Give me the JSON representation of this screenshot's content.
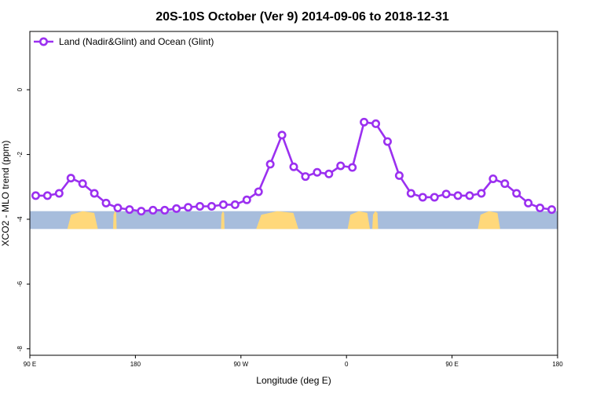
{
  "chart_data": {
    "type": "line",
    "title": "20S-10S October (Ver 9)   2014-09-06 to 2018-12-31",
    "xlabel": "Longitude (deg E)",
    "ylabel": "XCO2 - MLO trend (ppm)",
    "xlim": [
      90,
      540
    ],
    "ylim": [
      -8.2,
      1.8
    ],
    "x_ticks": [
      {
        "value": 90,
        "label": "90 E"
      },
      {
        "value": 180,
        "label": "180"
      },
      {
        "value": 270,
        "label": "90 W"
      },
      {
        "value": 360,
        "label": "0"
      },
      {
        "value": 450,
        "label": "90 E"
      },
      {
        "value": 540,
        "label": "180"
      }
    ],
    "y_ticks": [
      {
        "value": 0,
        "label": "0"
      },
      {
        "value": -2,
        "label": "-2"
      },
      {
        "value": -4,
        "label": "-4"
      },
      {
        "value": -6,
        "label": "-6"
      },
      {
        "value": -8,
        "label": "-8"
      }
    ],
    "legend": {
      "position": "top-left"
    },
    "series": [
      {
        "name": "Land (Nadir&Glint) and Ocean (Glint)",
        "color": "#9b30f0",
        "x": [
          95,
          105,
          115,
          125,
          135,
          145,
          155,
          165,
          175,
          185,
          195,
          205,
          215,
          225,
          235,
          245,
          255,
          265,
          275,
          285,
          295,
          305,
          315,
          325,
          335,
          345,
          355,
          365,
          375,
          385,
          395,
          405,
          415,
          425,
          435,
          445,
          455,
          465,
          475,
          485,
          495,
          505,
          515,
          525,
          535
        ],
        "y": [
          -3.27,
          -3.27,
          -3.2,
          -2.73,
          -2.9,
          -3.2,
          -3.5,
          -3.65,
          -3.7,
          -3.75,
          -3.72,
          -3.72,
          -3.67,
          -3.63,
          -3.6,
          -3.6,
          -3.55,
          -3.55,
          -3.4,
          -3.15,
          -2.3,
          -1.4,
          -2.38,
          -2.68,
          -2.55,
          -2.6,
          -2.35,
          -2.4,
          -1.0,
          -1.05,
          -1.6,
          -2.65,
          -3.2,
          -3.32,
          -3.32,
          -3.22,
          -3.27,
          -3.27,
          -3.2,
          -2.75,
          -2.9,
          -3.2,
          -3.5,
          -3.65,
          -3.7
        ]
      }
    ],
    "land_ocean_strip": {
      "ocean_color": "#a7bddc",
      "land_color": "#ffd87a",
      "y_range": [
        -4.3,
        -3.75
      ],
      "land_segments": [
        [
          122,
          148
        ],
        [
          161,
          164
        ],
        [
          253,
          256
        ],
        [
          283,
          319
        ],
        [
          361,
          380
        ],
        [
          382,
          387
        ],
        [
          472,
          491
        ]
      ]
    }
  }
}
